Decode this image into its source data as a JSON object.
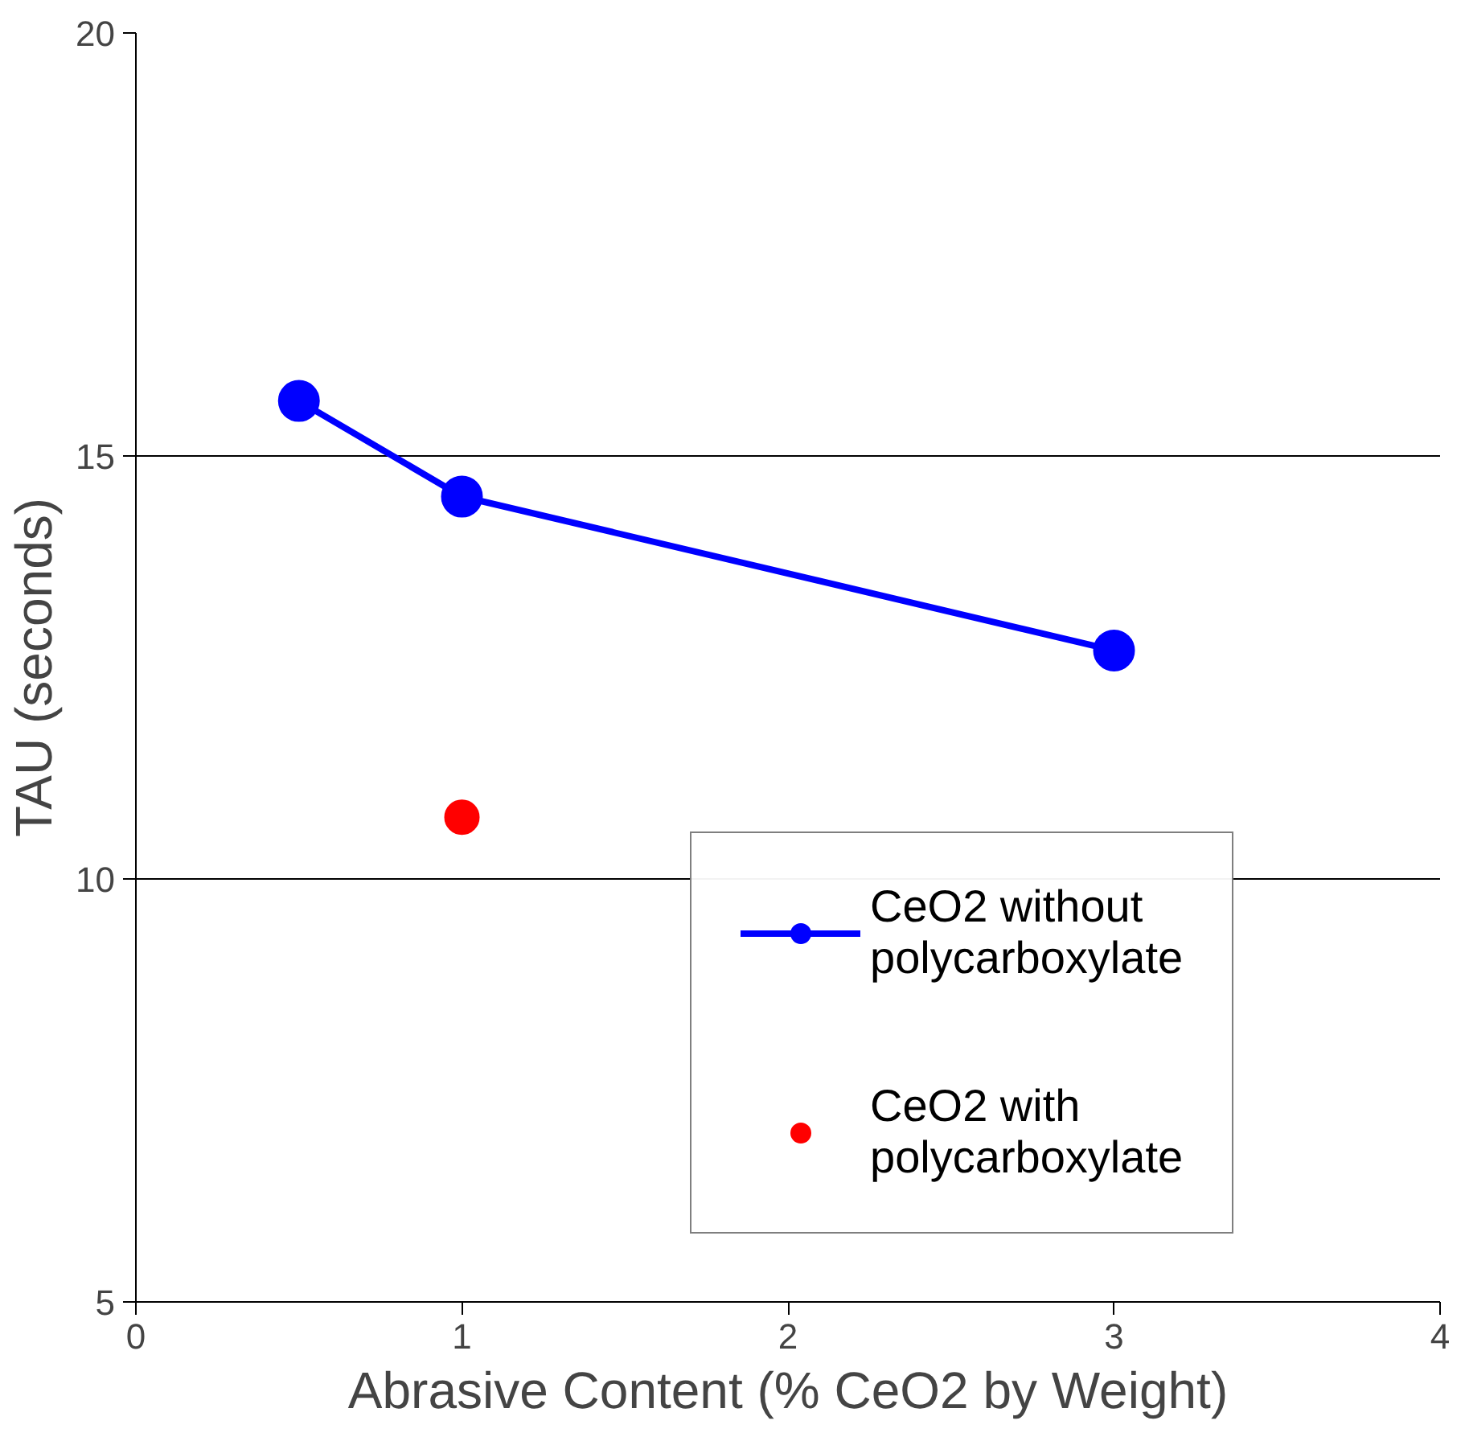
{
  "chart_data": {
    "type": "line",
    "xlabel": "Abrasive Content (% CeO2 by Weight)",
    "ylabel": "TAU (seconds)",
    "xlim": [
      0,
      4
    ],
    "xticks": [
      0,
      1,
      2,
      3,
      4
    ],
    "ylim": [
      5,
      20
    ],
    "yticks": [
      5,
      10,
      15,
      20
    ],
    "grid": "y",
    "legend": "right",
    "marker": "circle",
    "series": [
      {
        "name": "CeO2 without polycarboxylate",
        "color": "#0000ff",
        "x": [
          0.5,
          1,
          3
        ],
        "values": [
          15.65,
          14.52,
          12.7
        ]
      },
      {
        "name": "CeO2 with polycarboxylate",
        "type": "scatter",
        "color": "#ff0000",
        "x": [
          1
        ],
        "values": [
          10.73
        ]
      }
    ]
  }
}
